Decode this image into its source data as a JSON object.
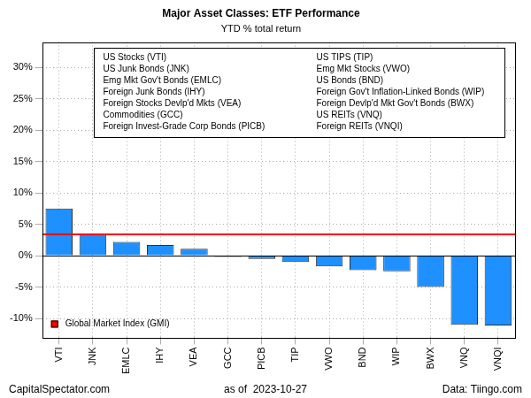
{
  "chart_data": {
    "type": "bar",
    "title": "Major Asset Classes: ETF Performance",
    "subtitle": "YTD % total return",
    "categories": [
      "VTI",
      "JNK",
      "EMLC",
      "IHY",
      "VEA",
      "GCC",
      "PICB",
      "TIP",
      "VWO",
      "BND",
      "WIP",
      "BWX",
      "VNQ",
      "VNQI"
    ],
    "values": [
      7.5,
      3.4,
      2.2,
      1.7,
      1.1,
      -0.2,
      -0.5,
      -1.0,
      -1.7,
      -2.3,
      -2.5,
      -5.0,
      -11.0,
      -11.1
    ],
    "color": "#1e90ff",
    "ylim": [
      -13,
      34
    ],
    "yticks": [
      {
        "value": -10,
        "label": "-10%"
      },
      {
        "value": -5,
        "label": "-5%"
      },
      {
        "value": 0,
        "label": "0%"
      },
      {
        "value": 5,
        "label": "5%"
      },
      {
        "value": 10,
        "label": "10%"
      },
      {
        "value": 15,
        "label": "15%"
      },
      {
        "value": 20,
        "label": "20%"
      },
      {
        "value": 25,
        "label": "25%"
      },
      {
        "value": 30,
        "label": "30%"
      }
    ],
    "grid": true,
    "legend": "bottomleft",
    "reference_line": {
      "name": "Global Market Index (GMI)",
      "value": 3.4,
      "color": "#ff0000"
    },
    "key": [
      "US Stocks (VTI)",
      "US Junk Bonds (JNK)",
      "Emg Mkt Gov't Bonds (EMLC)",
      "Foreign Junk Bonds (IHY)",
      "Foreign Stocks Devlp'd Mkts (VEA)",
      "Commodities (GCC)",
      "Foreign Invest-Grade Corp Bonds (PICB)",
      "US TIPS (TIP)",
      "Emg Mkt Stocks (VWO)",
      "US Bonds (BND)",
      "Foreign Gov't Inflation-Linked Bonds (WIP)",
      "Foreign Devlp'd Mkt Gov't Bonds (BWX)",
      "US REITs (VNQ)",
      "Foreign REITs (VNQI)"
    ],
    "footer": {
      "left": "CapitalSpectator.com",
      "center": "as of  2023-10-27",
      "right": "Data: Tiingo.com"
    }
  }
}
